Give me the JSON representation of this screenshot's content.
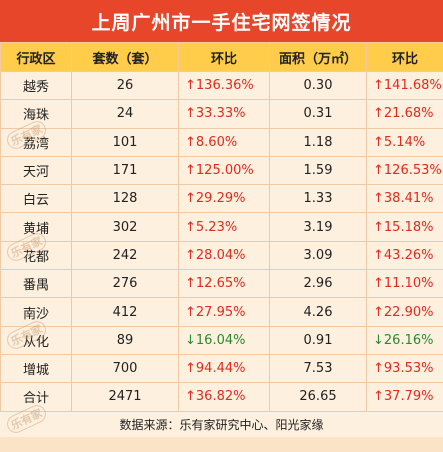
{
  "title": "上周广州市一手住宅网签情况",
  "headers": [
    "行政区",
    "套数（套）",
    "环比",
    "面积（万㎡）",
    "环比"
  ],
  "rows": [
    {
      "district": "越秀",
      "units": "26",
      "units_change": "136.36%",
      "units_dir": "up",
      "area": "0.30",
      "area_change": "141.68%",
      "area_dir": "up"
    },
    {
      "district": "海珠",
      "units": "24",
      "units_change": "33.33%",
      "units_dir": "up",
      "area": "0.31",
      "area_change": "21.68%",
      "area_dir": "up"
    },
    {
      "district": "荔湾",
      "units": "101",
      "units_change": "8.60%",
      "units_dir": "up",
      "area": "1.18",
      "area_change": "5.14%",
      "area_dir": "up"
    },
    {
      "district": "天河",
      "units": "171",
      "units_change": "125.00%",
      "units_dir": "up",
      "area": "1.59",
      "area_change": "126.53%",
      "area_dir": "up"
    },
    {
      "district": "白云",
      "units": "128",
      "units_change": "29.29%",
      "units_dir": "up",
      "area": "1.33",
      "area_change": "38.41%",
      "area_dir": "up"
    },
    {
      "district": "黄埔",
      "units": "302",
      "units_change": "5.23%",
      "units_dir": "up",
      "area": "3.19",
      "area_change": "15.18%",
      "area_dir": "up"
    },
    {
      "district": "花都",
      "units": "242",
      "units_change": "28.04%",
      "units_dir": "up",
      "area": "3.09",
      "area_change": "43.26%",
      "area_dir": "up"
    },
    {
      "district": "番禺",
      "units": "276",
      "units_change": "12.65%",
      "units_dir": "up",
      "area": "2.96",
      "area_change": "11.10%",
      "area_dir": "up"
    },
    {
      "district": "南沙",
      "units": "412",
      "units_change": "27.95%",
      "units_dir": "up",
      "area": "4.26",
      "area_change": "22.90%",
      "area_dir": "up"
    },
    {
      "district": "从化",
      "units": "89",
      "units_change": "16.04%",
      "units_dir": "down",
      "area": "0.91",
      "area_change": "26.16%",
      "area_dir": "down"
    },
    {
      "district": "增城",
      "units": "700",
      "units_change": "94.44%",
      "units_dir": "up",
      "area": "7.53",
      "area_change": "93.53%",
      "area_dir": "up"
    },
    {
      "district": "合计",
      "units": "2471",
      "units_change": "36.82%",
      "units_dir": "up",
      "area": "26.65",
      "area_change": "37.79%",
      "area_dir": "up"
    }
  ],
  "source": "数据来源：乐有家研究中心、阳光家缘",
  "watermark": "乐有家",
  "colors": {
    "title_bg": "#e8462b",
    "header_bg": "#ffcd4a",
    "up": "#e02b1f",
    "down": "#2a8a2a"
  }
}
